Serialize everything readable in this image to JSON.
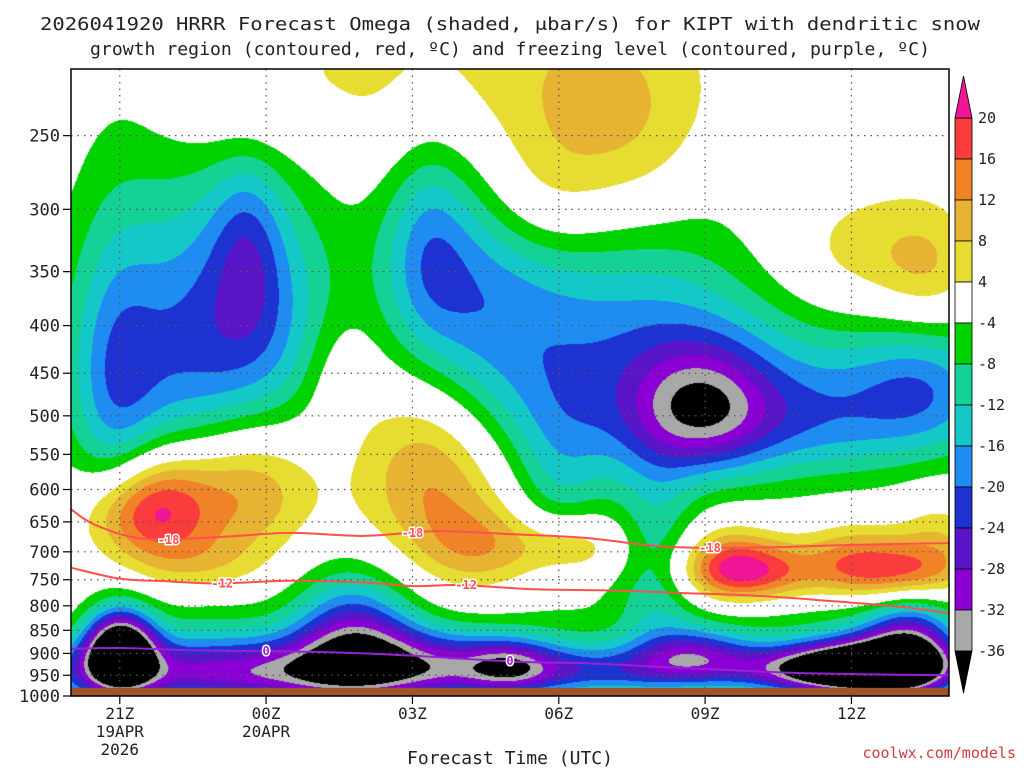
{
  "chart_data": {
    "type": "heatmap",
    "title_line1": "2026041920 HRRR Forecast Omega (shaded, μbar/s) for KIPT with dendritic snow",
    "title_line2": "growth region (contoured, red, ºC) and freezing level (contoured, purple, ºC)",
    "xlabel": "Forecast Time (UTC)",
    "ylabel": "",
    "credit": "coolwx.com/models",
    "x_range_hours": [
      0,
      18
    ],
    "y_range_hpa": [
      1000,
      200
    ],
    "x_ticks": [
      {
        "hour": 1,
        "line1": "21Z",
        "line2": "19APR",
        "line3": "2026"
      },
      {
        "hour": 4,
        "line1": "00Z",
        "line2": "20APR",
        "line3": ""
      },
      {
        "hour": 7,
        "line1": "03Z",
        "line2": "",
        "line3": ""
      },
      {
        "hour": 10,
        "line1": "06Z",
        "line2": "",
        "line3": ""
      },
      {
        "hour": 13,
        "line1": "09Z",
        "line2": "",
        "line3": ""
      },
      {
        "hour": 16,
        "line1": "12Z",
        "line2": "",
        "line3": ""
      }
    ],
    "y_ticks": [
      "250",
      "300",
      "350",
      "400",
      "450",
      "500",
      "550",
      "600",
      "650",
      "700",
      "750",
      "800",
      "850",
      "900",
      "950",
      "1000"
    ],
    "legend": {
      "placement": "right",
      "labels": [
        "20",
        "16",
        "12",
        "8",
        "4",
        "-4",
        "-8",
        "-12",
        "-16",
        "-20",
        "-24",
        "-28",
        "-32",
        "-36"
      ],
      "bins": [
        {
          "lo": -40,
          "hi": -36,
          "color": "#000000"
        },
        {
          "lo": -36,
          "hi": -32,
          "color": "#a8a8a8"
        },
        {
          "lo": -32,
          "hi": -28,
          "color": "#8a00d4"
        },
        {
          "lo": -28,
          "hi": -24,
          "color": "#5a14c8"
        },
        {
          "lo": -24,
          "hi": -20,
          "color": "#1e32d2"
        },
        {
          "lo": -20,
          "hi": -16,
          "color": "#1e8cf0"
        },
        {
          "lo": -16,
          "hi": -12,
          "color": "#14c8c8"
        },
        {
          "lo": -12,
          "hi": -8,
          "color": "#14d296"
        },
        {
          "lo": -8,
          "hi": -4,
          "color": "#00d200"
        },
        {
          "lo": -4,
          "hi": 4,
          "color": "#ffffff"
        },
        {
          "lo": 4,
          "hi": 8,
          "color": "#e6dc32"
        },
        {
          "lo": 8,
          "hi": 12,
          "color": "#e6b432"
        },
        {
          "lo": 12,
          "hi": 16,
          "color": "#f08228"
        },
        {
          "lo": 16,
          "hi": 20,
          "color": "#fa3c3c"
        },
        {
          "lo": 20,
          "hi": 24,
          "color": "#f01496"
        }
      ]
    },
    "omega_blobs": [
      {
        "t": 1.0,
        "p": 895,
        "st": 0.5,
        "sp": 60,
        "a": -46
      },
      {
        "t": 2.0,
        "p": 945,
        "st": 3.0,
        "sp": 55,
        "a": -20
      },
      {
        "t": 5.8,
        "p": 860,
        "st": 0.9,
        "sp": 90,
        "a": -24
      },
      {
        "t": 6.5,
        "p": 950,
        "st": 3.0,
        "sp": 50,
        "a": -15
      },
      {
        "t": 11.0,
        "p": 940,
        "st": 4.0,
        "sp": 40,
        "a": -14
      },
      {
        "t": 9.0,
        "p": 930,
        "st": 0.6,
        "sp": 40,
        "a": -12
      },
      {
        "t": 12.8,
        "p": 900,
        "st": 0.8,
        "sp": 40,
        "a": -16
      },
      {
        "t": 15.9,
        "p": 935,
        "st": 1.2,
        "sp": 40,
        "a": -40
      },
      {
        "t": 16.9,
        "p": 925,
        "st": 0.9,
        "sp": 55,
        "a": -22
      },
      {
        "t": 17.2,
        "p": 880,
        "st": 0.6,
        "sp": 70,
        "a": -18
      },
      {
        "t": 7.5,
        "p": 880,
        "st": 2.0,
        "sp": 45,
        "a": -10
      },
      {
        "t": 2.8,
        "p": 850,
        "st": 1.2,
        "sp": 55,
        "a": -6
      },
      {
        "t": 2.0,
        "p": 430,
        "st": 1.5,
        "sp": 110,
        "a": -17
      },
      {
        "t": 0.9,
        "p": 480,
        "st": 0.6,
        "sp": 120,
        "a": -9
      },
      {
        "t": 3.9,
        "p": 390,
        "st": 1.1,
        "sp": 95,
        "a": -13
      },
      {
        "t": 3.6,
        "p": 330,
        "st": 0.5,
        "sp": 50,
        "a": -8
      },
      {
        "t": 8.0,
        "p": 360,
        "st": 1.2,
        "sp": 100,
        "a": -14
      },
      {
        "t": 7.3,
        "p": 330,
        "st": 0.6,
        "sp": 60,
        "a": -8
      },
      {
        "t": 11.0,
        "p": 430,
        "st": 2.3,
        "sp": 100,
        "a": -13
      },
      {
        "t": 13.0,
        "p": 490,
        "st": 0.9,
        "sp": 55,
        "a": -16
      },
      {
        "t": 15.0,
        "p": 500,
        "st": 2.6,
        "sp": 55,
        "a": -14
      },
      {
        "t": 17.5,
        "p": 460,
        "st": 1.0,
        "sp": 50,
        "a": -10
      },
      {
        "t": 13.0,
        "p": 440,
        "st": 5.0,
        "sp": 120,
        "a": -5
      },
      {
        "t": 10.0,
        "p": 620,
        "st": 0.7,
        "sp": 95,
        "a": -8
      },
      {
        "t": 12.0,
        "p": 720,
        "st": 0.6,
        "sp": 140,
        "a": -10
      },
      {
        "t": 15.5,
        "p": 850,
        "st": 3.5,
        "sp": 90,
        "a": -6
      },
      {
        "t": 1.8,
        "p": 625,
        "st": 0.8,
        "sp": 60,
        "a": 19
      },
      {
        "t": 1.0,
        "p": 640,
        "st": 0.7,
        "sp": 50,
        "a": 6
      },
      {
        "t": 3.6,
        "p": 590,
        "st": 1.0,
        "sp": 75,
        "a": 14
      },
      {
        "t": 2.6,
        "p": 720,
        "st": 1.0,
        "sp": 40,
        "a": 6
      },
      {
        "t": 5.5,
        "p": 450,
        "st": 0.6,
        "sp": 50,
        "a": 5
      },
      {
        "t": 7.4,
        "p": 560,
        "st": 1.1,
        "sp": 110,
        "a": 15
      },
      {
        "t": 8.5,
        "p": 690,
        "st": 0.9,
        "sp": 50,
        "a": 9
      },
      {
        "t": 10.3,
        "p": 690,
        "st": 0.8,
        "sp": 40,
        "a": 11
      },
      {
        "t": 14.0,
        "p": 735,
        "st": 1.0,
        "sp": 40,
        "a": 19
      },
      {
        "t": 13.4,
        "p": 720,
        "st": 0.7,
        "sp": 50,
        "a": 9
      },
      {
        "t": 17.0,
        "p": 735,
        "st": 1.0,
        "sp": 40,
        "a": 18
      },
      {
        "t": 16.0,
        "p": 710,
        "st": 0.7,
        "sp": 45,
        "a": 8
      },
      {
        "t": 17.8,
        "p": 670,
        "st": 0.6,
        "sp": 50,
        "a": 6
      },
      {
        "t": 3.5,
        "p": 225,
        "st": 1.1,
        "sp": 30,
        "a": 7
      },
      {
        "t": 7.5,
        "p": 215,
        "st": 2.0,
        "sp": 45,
        "a": 7
      },
      {
        "t": 10.5,
        "p": 240,
        "st": 2.3,
        "sp": 55,
        "a": 7
      },
      {
        "t": 9.5,
        "p": 295,
        "st": 1.0,
        "sp": 35,
        "a": 6
      },
      {
        "t": 11.5,
        "p": 250,
        "st": 1.2,
        "sp": 50,
        "a": 5
      },
      {
        "t": 16.3,
        "p": 335,
        "st": 1.5,
        "sp": 40,
        "a": 9
      },
      {
        "t": 17.6,
        "p": 355,
        "st": 0.7,
        "sp": 40,
        "a": 6
      },
      {
        "t": 13.0,
        "p": 280,
        "st": 0.6,
        "sp": 30,
        "a": -1
      }
    ],
    "contours": [
      {
        "name": "dgz-minus-18",
        "label": "-18",
        "color": "#ff5050",
        "points": [
          [
            0,
            630
          ],
          [
            0.5,
            655
          ],
          [
            1.5,
            678
          ],
          [
            3.0,
            675
          ],
          [
            4.5,
            668
          ],
          [
            6.0,
            673
          ],
          [
            7.5,
            665
          ],
          [
            9.0,
            670
          ],
          [
            10.5,
            676
          ],
          [
            12.0,
            690
          ],
          [
            13.0,
            693
          ],
          [
            14.5,
            692
          ],
          [
            16.0,
            688
          ],
          [
            18.0,
            685
          ]
        ],
        "label_at": [
          [
            2.0,
            680
          ],
          [
            7.0,
            668
          ],
          [
            13.1,
            693
          ]
        ]
      },
      {
        "name": "dgz-minus-12",
        "label": "-12",
        "color": "#ff5050",
        "points": [
          [
            0,
            728
          ],
          [
            1.0,
            748
          ],
          [
            2.0,
            753
          ],
          [
            3.0,
            757
          ],
          [
            4.5,
            752
          ],
          [
            6.0,
            755
          ],
          [
            7.0,
            762
          ],
          [
            8.0,
            760
          ],
          [
            9.5,
            768
          ],
          [
            11.0,
            770
          ],
          [
            12.5,
            775
          ],
          [
            14.0,
            780
          ],
          [
            15.5,
            790
          ],
          [
            17.0,
            802
          ],
          [
            18.0,
            815
          ]
        ],
        "label_at": [
          [
            3.1,
            757
          ],
          [
            8.1,
            760
          ]
        ]
      },
      {
        "name": "freezing-level-0",
        "label": "0",
        "color": "#9a20d8",
        "points": [
          [
            0,
            890
          ],
          [
            1.0,
            888
          ],
          [
            2.5,
            893
          ],
          [
            4.0,
            895
          ],
          [
            5.5,
            898
          ],
          [
            7.0,
            905
          ],
          [
            8.5,
            915
          ],
          [
            9.5,
            920
          ],
          [
            10.5,
            922
          ],
          [
            12.0,
            930
          ],
          [
            13.5,
            938
          ],
          [
            15.0,
            945
          ],
          [
            16.5,
            948
          ],
          [
            18.0,
            950
          ]
        ],
        "label_at": [
          [
            4.0,
            895
          ],
          [
            9.0,
            917
          ]
        ]
      }
    ],
    "ground_p": 980
  }
}
